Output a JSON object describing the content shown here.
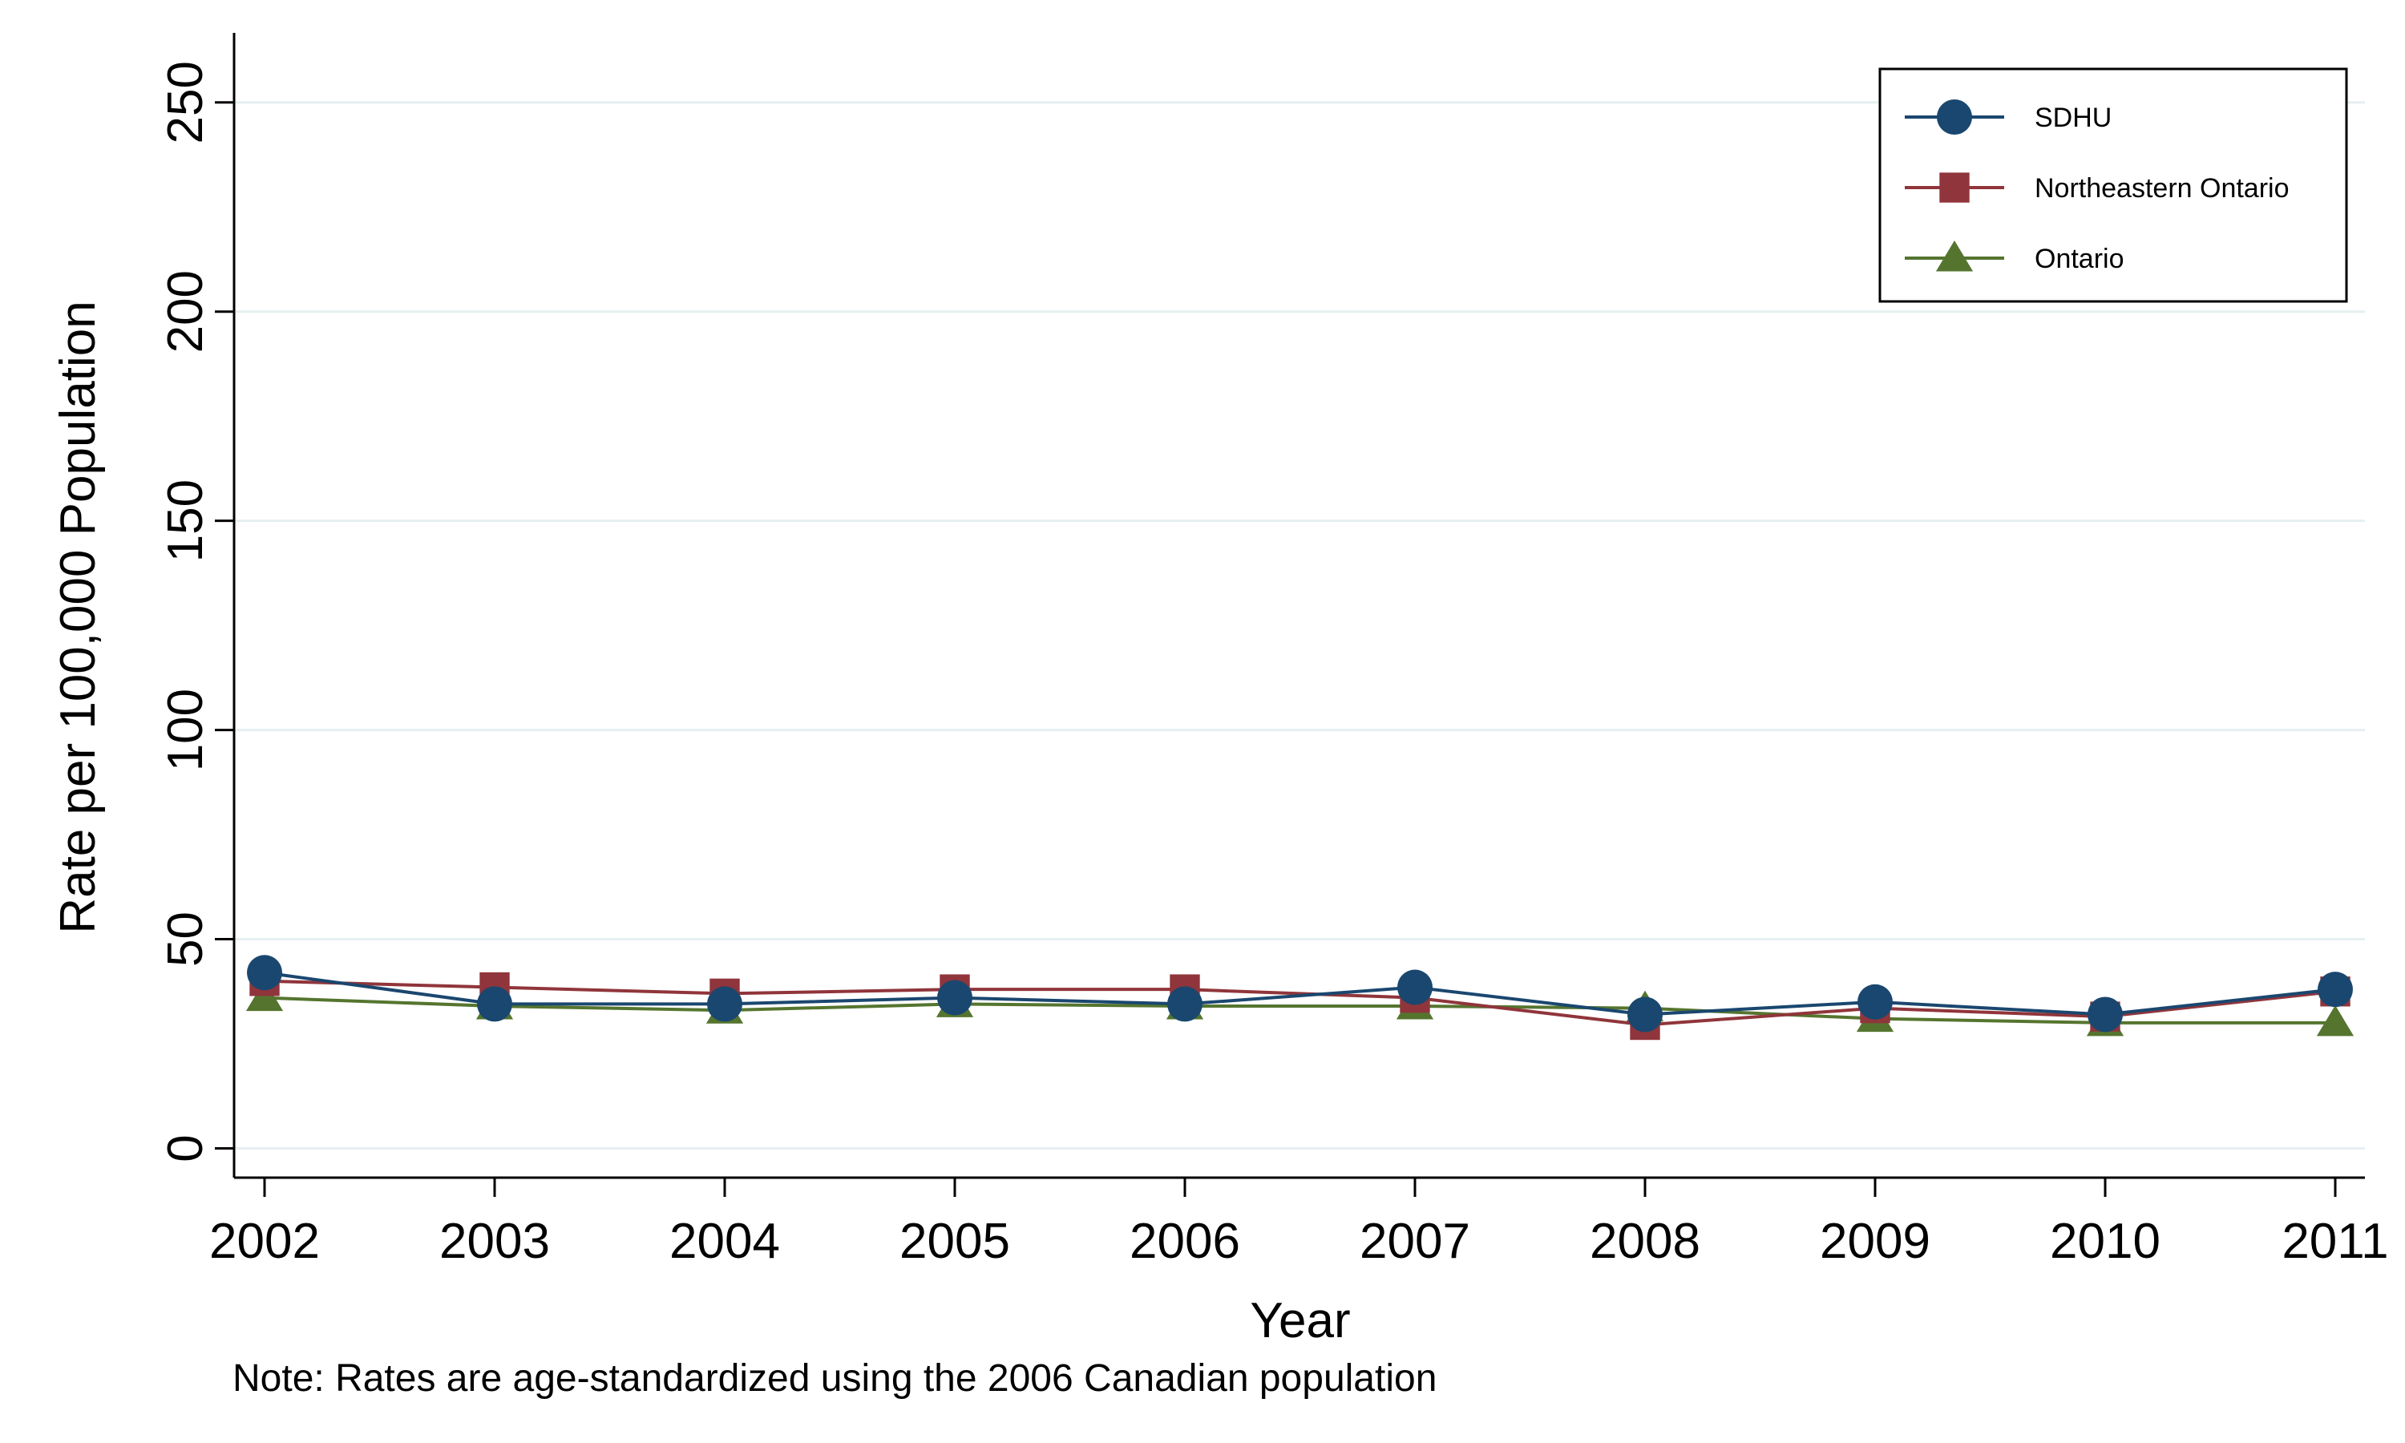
{
  "chart_data": {
    "type": "line",
    "title": "",
    "xlabel": "Year",
    "ylabel": "Rate per 100,000 Population",
    "note": "Note: Rates are age-standardized using the 2006 Canadian population",
    "categories": [
      "2002",
      "2003",
      "2004",
      "2005",
      "2006",
      "2007",
      "2008",
      "2009",
      "2010",
      "2011"
    ],
    "y_ticks": [
      "0",
      "50",
      "100",
      "150",
      "200",
      "250"
    ],
    "ylim": [
      -7,
      258
    ],
    "grid": true,
    "legend_position": "top-right",
    "series": [
      {
        "name": "SDHU",
        "marker": "circle",
        "color": "#1a476f",
        "values": [
          42,
          34.5,
          34.5,
          36,
          34.5,
          38.5,
          32,
          35,
          32,
          38
        ]
      },
      {
        "name": "Northeastern Ontario",
        "marker": "square",
        "color": "#90353b",
        "values": [
          40,
          38.5,
          37,
          38,
          38,
          36,
          29.5,
          33.5,
          31.5,
          37.5
        ]
      },
      {
        "name": "Ontario",
        "marker": "triangle",
        "color": "#55752f",
        "values": [
          36,
          34,
          33,
          34.5,
          34,
          34,
          33.5,
          31,
          30,
          30
        ]
      }
    ]
  }
}
